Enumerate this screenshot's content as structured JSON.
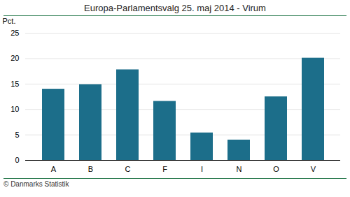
{
  "chart_data": {
    "type": "bar",
    "title": "Europa-Parlamentsvalg 25. maj 2014 - Virum",
    "categories": [
      "A",
      "B",
      "C",
      "F",
      "I",
      "N",
      "O",
      "V"
    ],
    "values": [
      14.0,
      14.9,
      17.8,
      11.6,
      5.4,
      4.0,
      12.5,
      20.1
    ],
    "color": "#1c6e8a",
    "ylabel": "Pct.",
    "ylim": [
      0,
      25
    ],
    "yticks": [
      0,
      5,
      10,
      15,
      20,
      25
    ],
    "grid": true,
    "annotations": [
      "© Danmarks Statistik"
    ]
  }
}
